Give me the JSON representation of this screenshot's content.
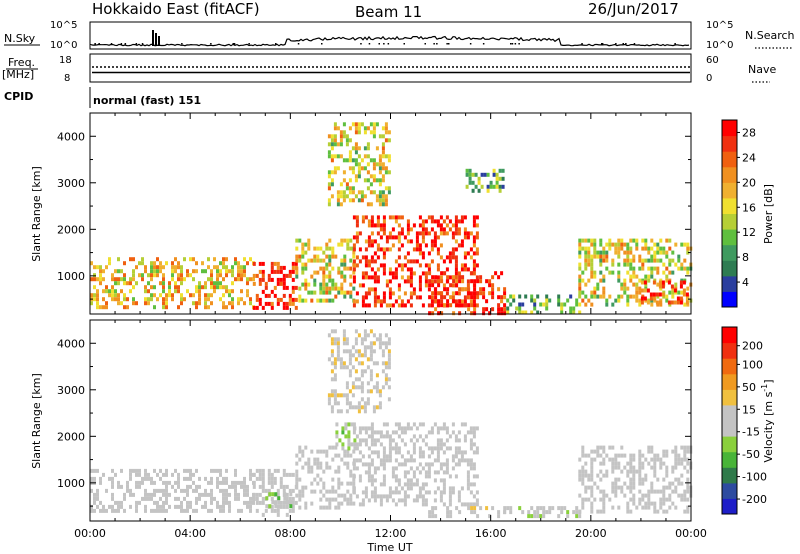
{
  "header": {
    "station": "Hokkaido East (fitACF)",
    "beam": "Beam 11",
    "date": "26/Jun/2017"
  },
  "top_panels": {
    "nsky_label": "N.Sky",
    "nsky_ticks": [
      "10^5",
      "10^0"
    ],
    "nsearch_label": "N.Search",
    "nsearch_ticks": [
      "10^5",
      "10^0"
    ],
    "freq_label": "Freq.",
    "freq_unit": "[MHz]",
    "freq_ticks": [
      "18",
      "8"
    ],
    "nave_label": "Nave",
    "nave_ticks": [
      "60",
      "0"
    ],
    "cpid_label": "CPID",
    "cpid_value": "normal (fast) 151"
  },
  "colors": {
    "power_scale": [
      "#0000ff",
      "#2a3e9e",
      "#2e7c52",
      "#3f9a5f",
      "#5fbf3f",
      "#b6cf36",
      "#f0e030",
      "#f0b030",
      "#f09020",
      "#f06010",
      "#f03010",
      "#ff0000"
    ],
    "velocity_scale": [
      "#1e1ec8",
      "#2d4ba0",
      "#2f7a4a",
      "#48b438",
      "#8ad03c",
      "#c4c4c4",
      "#c4c4c4",
      "#f0c040",
      "#f09a20",
      "#f06a10",
      "#f03010",
      "#ff0000"
    ]
  },
  "chart_data": [
    {
      "type": "heatmap",
      "title": "",
      "xlabel": "",
      "ylabel": "Slant Range [km]",
      "xlim": [
        0,
        24
      ],
      "ylim": [
        180,
        4500
      ],
      "xticks": [
        "00:00",
        "04:00",
        "08:00",
        "12:00",
        "16:00",
        "20:00",
        "00:00"
      ],
      "yticks": [
        "1000",
        "2000",
        "3000",
        "4000"
      ],
      "colorbar": {
        "label": "Power [dB]",
        "ticks": [
          "4",
          "8",
          "12",
          "16",
          "20",
          "24",
          "28"
        ],
        "range": [
          0,
          30
        ]
      },
      "echo_regions": [
        {
          "t": [
            0,
            6.5
          ],
          "range": [
            300,
            1400
          ],
          "value": 18
        },
        {
          "t": [
            6.5,
            8.2
          ],
          "range": [
            300,
            1300
          ],
          "value": 28
        },
        {
          "t": [
            8.2,
            10.5
          ],
          "range": [
            500,
            1800
          ],
          "value": 16
        },
        {
          "t": [
            10.5,
            15.5
          ],
          "range": [
            400,
            2300
          ],
          "value": 26
        },
        {
          "t": [
            13.5,
            16.5
          ],
          "range": [
            200,
            1100
          ],
          "value": 28
        },
        {
          "t": [
            16.5,
            19.5
          ],
          "range": [
            200,
            600
          ],
          "value": 10
        },
        {
          "t": [
            19.5,
            24
          ],
          "range": [
            400,
            1800
          ],
          "value": 16
        },
        {
          "t": [
            22,
            24
          ],
          "range": [
            400,
            900
          ],
          "value": 26
        },
        {
          "t": [
            9.5,
            12
          ],
          "range": [
            2500,
            4300
          ],
          "value": 16
        },
        {
          "t": [
            15,
            16.5
          ],
          "range": [
            2800,
            3300
          ],
          "value": 10
        }
      ]
    },
    {
      "type": "heatmap",
      "title": "",
      "xlabel": "Time UT",
      "ylabel": "Slant Range [km]",
      "xlim": [
        0,
        24
      ],
      "ylim": [
        180,
        4500
      ],
      "xticks": [
        "00:00",
        "04:00",
        "08:00",
        "12:00",
        "16:00",
        "20:00",
        "00:00"
      ],
      "yticks": [
        "1000",
        "2000",
        "3000",
        "4000"
      ],
      "colorbar": {
        "label": "Velocity [m s-1]",
        "label_main": "Velocity [m s",
        "label_sup": "-1",
        "label_tail": "]",
        "ticks": [
          "200",
          "100",
          "50",
          "15",
          "-15",
          "-50",
          "-100",
          "-200"
        ],
        "range": [
          -250,
          250
        ]
      },
      "echo_regions": [
        {
          "t": [
            0,
            6.5
          ],
          "range": [
            400,
            1300
          ],
          "value": 0
        },
        {
          "t": [
            6.5,
            8.2
          ],
          "range": [
            300,
            1300
          ],
          "value": 0
        },
        {
          "t": [
            8.2,
            10.5
          ],
          "range": [
            500,
            1800
          ],
          "value": 0
        },
        {
          "t": [
            10.5,
            15.5
          ],
          "range": [
            500,
            2300
          ],
          "value": 0
        },
        {
          "t": [
            13.5,
            16.5
          ],
          "range": [
            250,
            500
          ],
          "value": 40
        },
        {
          "t": [
            16.5,
            19.5
          ],
          "range": [
            250,
            500
          ],
          "value": -40
        },
        {
          "t": [
            19.5,
            24
          ],
          "range": [
            400,
            1800
          ],
          "value": 0
        },
        {
          "t": [
            9.8,
            10.6
          ],
          "range": [
            1700,
            2300
          ],
          "value": -60
        },
        {
          "t": [
            7.0,
            8.0
          ],
          "range": [
            500,
            800
          ],
          "value": -60
        },
        {
          "t": [
            9.5,
            12
          ],
          "range": [
            2500,
            4300
          ],
          "value": 40
        }
      ]
    }
  ]
}
